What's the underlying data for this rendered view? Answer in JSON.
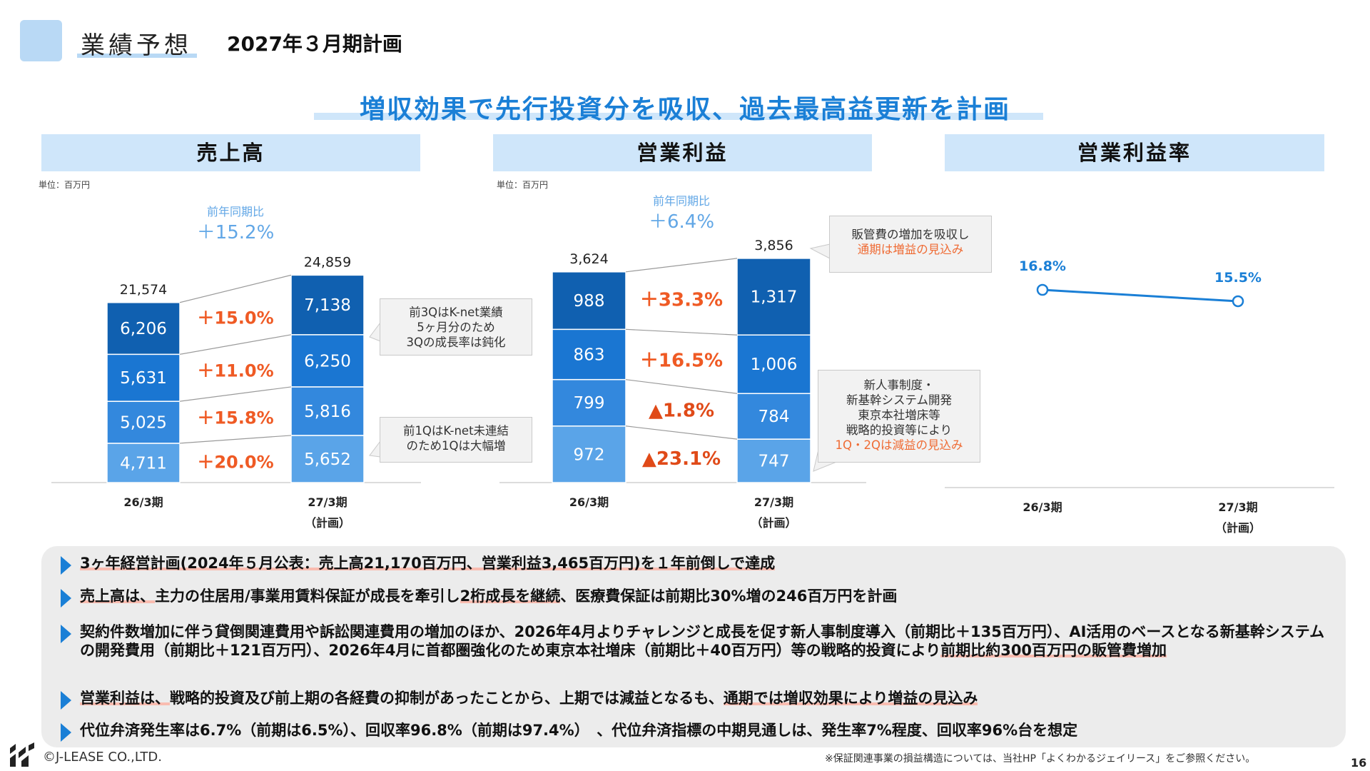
{
  "header": {
    "section": "業績予想",
    "title": "2027年３月期計画"
  },
  "headline": "増収効果で先行投資分を吸収、過去最高益更新を計画",
  "unit": "単位：百万円",
  "colors": {
    "accent": "#1a7fd6",
    "q4": "#1060b0",
    "q3": "#1a76d2",
    "q2": "#3388dd",
    "q1": "#5aa4e8",
    "increase": "#ef5a24",
    "decrease": "#e04a18",
    "light_blue_text": "#62a7e6"
  },
  "chart_data": [
    {
      "type": "bar",
      "stacked": true,
      "title": "売上高",
      "categories": [
        "26/3期",
        "27/3期"
      ],
      "category_sublabels": [
        "",
        "（計画）"
      ],
      "series": [
        {
          "segment": "1Q",
          "values": [
            4711,
            5652
          ],
          "labels": [
            "4,711",
            "5,652"
          ],
          "change": "＋20.0%"
        },
        {
          "segment": "2Q",
          "values": [
            5025,
            5816
          ],
          "labels": [
            "5,025",
            "5,816"
          ],
          "change": "＋15.8%"
        },
        {
          "segment": "3Q",
          "values": [
            5631,
            6250
          ],
          "labels": [
            "5,631",
            "6,250"
          ],
          "change": "＋11.0%"
        },
        {
          "segment": "4Q",
          "values": [
            6206,
            7138
          ],
          "labels": [
            "6,206",
            "7,138"
          ],
          "change": "＋15.0%"
        }
      ],
      "totals": [
        21574,
        24859
      ],
      "total_labels": [
        "21,574",
        "24,859"
      ],
      "yoy_label": "前年同期比",
      "yoy_value": "＋15.2%",
      "ylim": [
        0,
        26000
      ],
      "notes": [
        {
          "lines": [
            "前3QはK-net業績",
            "5ヶ月分のため",
            "3Qの成長率は鈍化"
          ]
        },
        {
          "lines": [
            "前1QはK-net未連結",
            "のため1Qは大幅増"
          ]
        }
      ]
    },
    {
      "type": "bar",
      "stacked": true,
      "title": "営業利益",
      "categories": [
        "26/3期",
        "27/3期"
      ],
      "category_sublabels": [
        "",
        "（計画）"
      ],
      "series": [
        {
          "segment": "1Q",
          "values": [
            972,
            747
          ],
          "labels": [
            "972",
            "747"
          ],
          "change": "▲23.1%"
        },
        {
          "segment": "2Q",
          "values": [
            799,
            784
          ],
          "labels": [
            "799",
            "784"
          ],
          "change": "▲1.8%"
        },
        {
          "segment": "3Q",
          "values": [
            863,
            1006
          ],
          "labels": [
            "863",
            "1,006"
          ],
          "change": "＋16.5%"
        },
        {
          "segment": "4Q",
          "values": [
            988,
            1317
          ],
          "labels": [
            "988",
            "1,317"
          ],
          "change": "＋33.3%"
        }
      ],
      "totals": [
        3624,
        3856
      ],
      "total_labels": [
        "3,624",
        "3,856"
      ],
      "yoy_label": "前年同期比",
      "yoy_value": "＋6.4%",
      "ylim": [
        0,
        4000
      ],
      "notes": [
        {
          "lines": [
            "販管費の増加を吸収し"
          ],
          "orange_lines": [
            "通期は増益の見込み"
          ]
        },
        {
          "lines": [
            "新人事制度・",
            "新基幹システム開発",
            "東京本社増床等",
            "戦略的投資等により"
          ],
          "orange_lines": [
            "1Q・2Qは減益の見込み"
          ]
        }
      ]
    },
    {
      "type": "line",
      "title": "営業利益率",
      "categories": [
        "26/3期",
        "27/3期"
      ],
      "category_sublabels": [
        "",
        "（計画）"
      ],
      "values": [
        16.8,
        15.5
      ],
      "value_labels": [
        "16.8%",
        "15.5%"
      ],
      "ylim": [
        0,
        20
      ]
    }
  ],
  "bullets": [
    {
      "segments": [
        {
          "t": "3ヶ年経営計画(2024年５月公表：売上高21,170百万円、営業利益3,465百万円)を１年前倒しで達成",
          "hl": true
        }
      ]
    },
    {
      "segments": [
        {
          "t": "売上高は、",
          "hl": true
        },
        {
          "t": "主力の住居用/事業用賃料保証が成長を牽引し",
          "hl": false
        },
        {
          "t": "2桁成長を継続",
          "hl": true
        },
        {
          "t": "、医療費保証は前期比30%増の246百万円を計画",
          "hl": false
        }
      ]
    },
    {
      "segments": [
        {
          "t": "契約件数増加に伴う貸倒関連費用や訴訟関連費用の増加のほか、2026年4月よりチャレンジと成長を促す新人事制度導入（前期比＋135百万円）、AI活用のベースとなる新基幹システムの開発費用（前期比＋121百万円）、2026年4月に首都圏強化のため東京本社増床（前期比＋40百万円）等の戦略的投資により",
          "hl": false
        },
        {
          "t": "前期比約300百万円の販管費増加",
          "hl": true
        }
      ]
    },
    {
      "segments": [
        {
          "t": "営業利益は、",
          "hl": true
        },
        {
          "t": "戦略的投資及び前上期の各経費の抑制があったことから、上期では減益となるも、",
          "hl": false
        },
        {
          "t": "通期では増収効果により増益の見込み",
          "hl": true
        }
      ]
    },
    {
      "segments": [
        {
          "t": "代位弁済発生率は6.7%（前期は6.5%）、回収率96.8%（前期は97.4%）　、代位弁済指標の中期見通しは、発生率7%程度、回収率96%台を想定",
          "hl": false
        }
      ]
    }
  ],
  "footer": {
    "copyright": "©J-LEASE CO.,LTD.",
    "note": "※保証関連事業の損益構造については、当社HP「よくわかるジェイリース」をご参照ください。",
    "page": "16"
  }
}
